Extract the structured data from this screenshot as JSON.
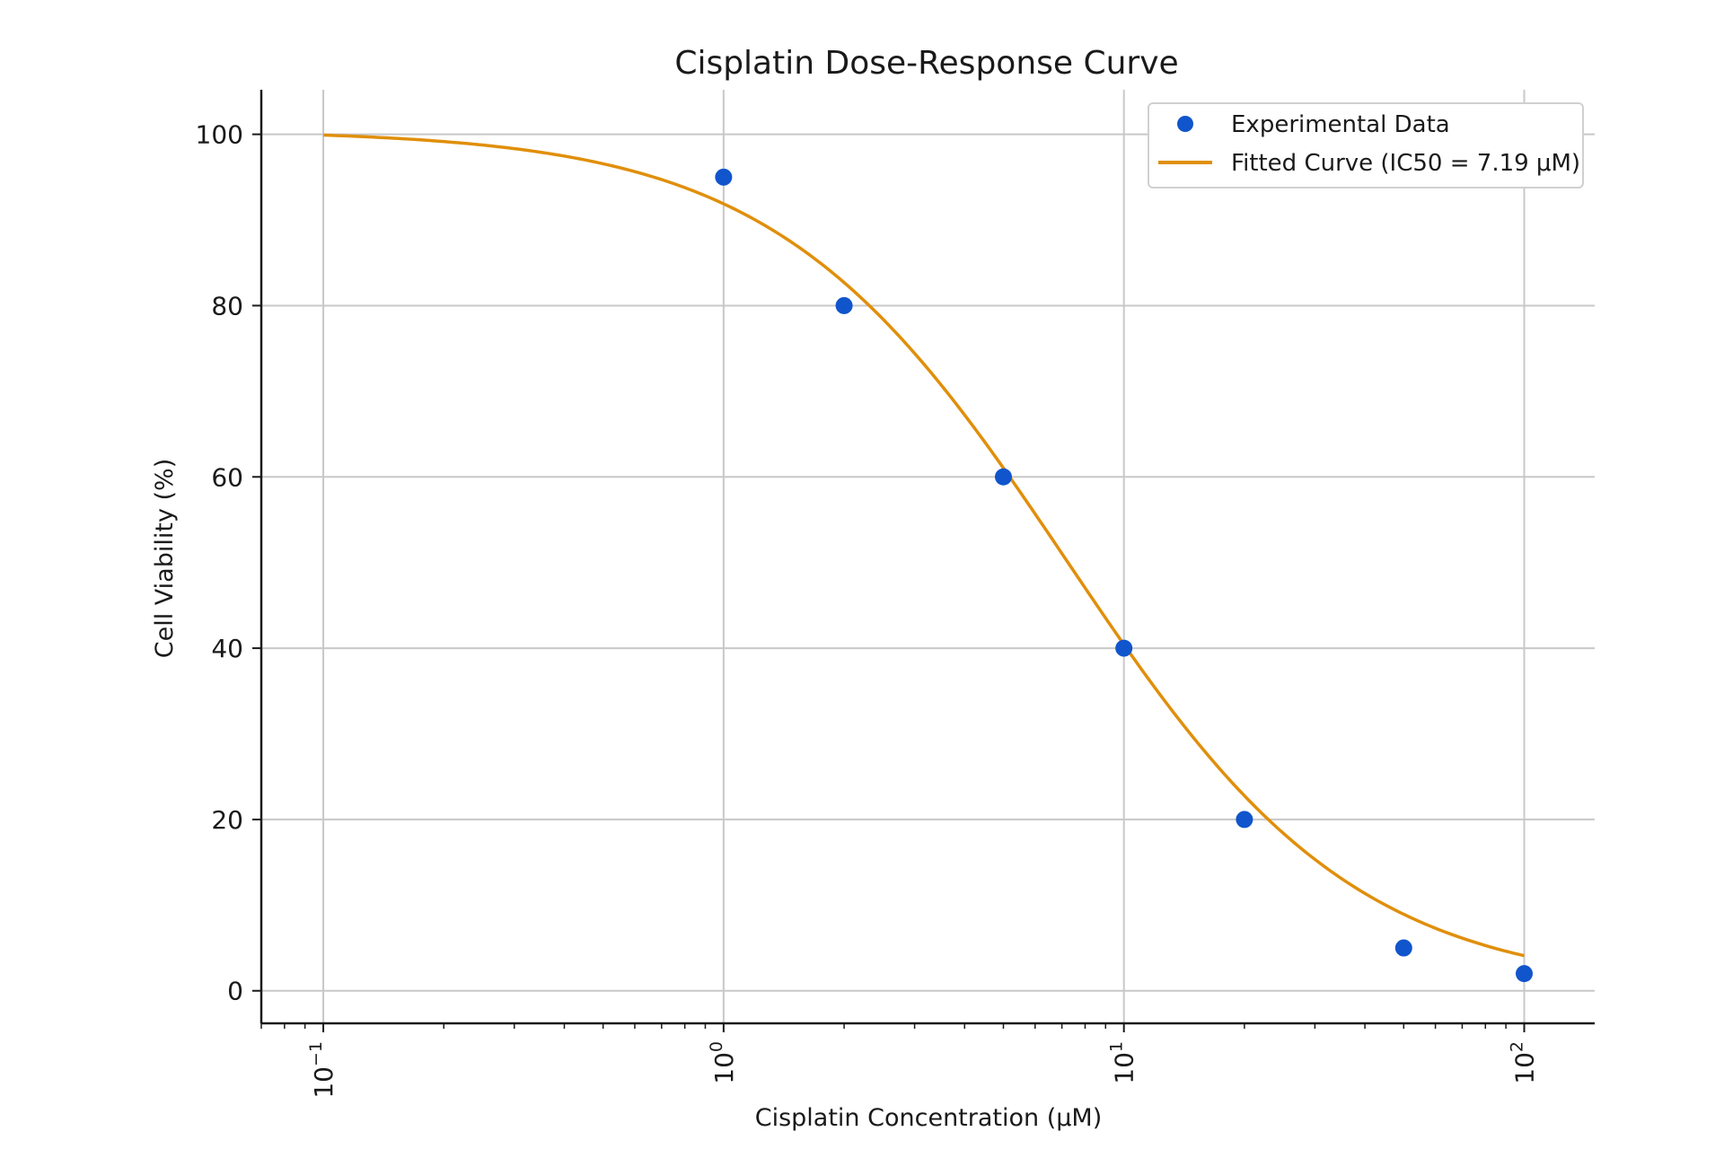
{
  "chart_data": {
    "type": "scatter",
    "title": "Cisplatin Dose-Response Curve",
    "xlabel": "Cisplatin Concentration (μM)",
    "ylabel": "Cell Viability (%)",
    "x_scale": "log",
    "xlim": [
      0.07,
      150
    ],
    "ylim": [
      -3.8,
      105.2
    ],
    "grid": true,
    "legend_position": "top-right",
    "x_ticks": [
      {
        "value": 0.1,
        "base": "10",
        "exp": "−1"
      },
      {
        "value": 1,
        "base": "10",
        "exp": "0"
      },
      {
        "value": 10,
        "base": "10",
        "exp": "1"
      },
      {
        "value": 100,
        "base": "10",
        "exp": "2"
      }
    ],
    "y_ticks": [
      {
        "value": 0,
        "label": "0"
      },
      {
        "value": 20,
        "label": "20"
      },
      {
        "value": 40,
        "label": "40"
      },
      {
        "value": 60,
        "label": "60"
      },
      {
        "value": 80,
        "label": "80"
      },
      {
        "value": 100,
        "label": "100"
      }
    ],
    "series": [
      {
        "name": "Experimental Data",
        "kind": "scatter",
        "color": "#1155cc",
        "points": [
          {
            "x": 1,
            "y": 95
          },
          {
            "x": 2,
            "y": 80
          },
          {
            "x": 5,
            "y": 60
          },
          {
            "x": 10,
            "y": 40
          },
          {
            "x": 20,
            "y": 20
          },
          {
            "x": 50,
            "y": 5
          },
          {
            "x": 100,
            "y": 2
          }
        ]
      },
      {
        "name": "Fitted Curve (IC50 = 7.19 μM)",
        "kind": "line",
        "color": "#e08f0b",
        "model": "four-parameter logistic",
        "top": 100.5,
        "bottom": 0,
        "ic50": 7.19,
        "hill": 1.2,
        "x_range": [
          0.1,
          100
        ]
      }
    ]
  }
}
